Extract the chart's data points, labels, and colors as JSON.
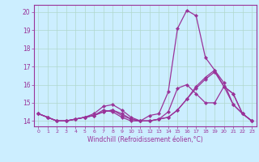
{
  "xlabel": "Windchill (Refroidissement éolien,°C)",
  "background_color": "#cceeff",
  "grid_color": "#b0d8cc",
  "line_color": "#993399",
  "xlim": [
    -0.5,
    23.5
  ],
  "ylim": [
    13.7,
    20.4
  ],
  "yticks": [
    14,
    15,
    16,
    17,
    18,
    19,
    20
  ],
  "xticks": [
    0,
    1,
    2,
    3,
    4,
    5,
    6,
    7,
    8,
    9,
    10,
    11,
    12,
    13,
    14,
    15,
    16,
    17,
    18,
    19,
    20,
    21,
    22,
    23
  ],
  "lines": [
    [
      14.4,
      14.2,
      14.0,
      14.0,
      14.1,
      14.2,
      14.3,
      14.6,
      14.5,
      14.2,
      14.0,
      14.0,
      14.3,
      14.4,
      15.6,
      19.1,
      20.1,
      19.8,
      17.5,
      16.8,
      15.9,
      15.5,
      14.4,
      14.0
    ],
    [
      14.4,
      14.2,
      14.0,
      14.0,
      14.1,
      14.2,
      14.3,
      14.5,
      14.6,
      14.3,
      14.1,
      14.0,
      14.0,
      14.1,
      14.2,
      14.6,
      15.2,
      15.8,
      16.3,
      16.7,
      15.9,
      14.9,
      14.4,
      14.0
    ],
    [
      14.4,
      14.2,
      14.0,
      14.0,
      14.1,
      14.2,
      14.4,
      14.8,
      14.9,
      14.6,
      14.2,
      14.0,
      14.0,
      14.1,
      14.5,
      15.8,
      16.0,
      15.5,
      15.0,
      15.0,
      15.9,
      15.5,
      14.4,
      14.0
    ],
    [
      14.4,
      14.2,
      14.0,
      14.0,
      14.1,
      14.2,
      14.3,
      14.5,
      14.6,
      14.4,
      14.1,
      14.0,
      14.0,
      14.1,
      14.2,
      14.6,
      15.2,
      15.9,
      16.4,
      16.8,
      16.1,
      14.9,
      14.4,
      14.0
    ]
  ]
}
